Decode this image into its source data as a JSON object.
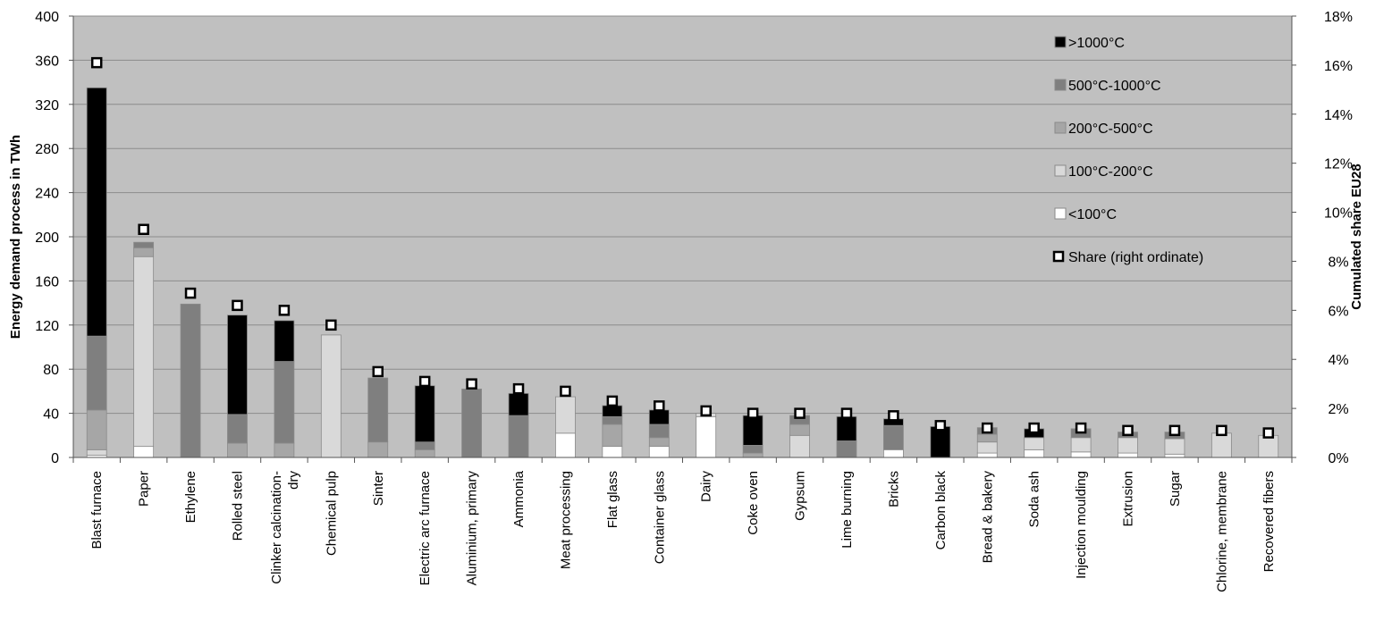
{
  "chart_data": {
    "type": "bar",
    "stacked": true,
    "title": "",
    "ylabel": "Energy demand process in TWh",
    "y2label": "Cumulated share EU28",
    "ylim": [
      0,
      400
    ],
    "yticks": [
      "0",
      "40",
      "80",
      "120",
      "160",
      "200",
      "240",
      "280",
      "320",
      "360",
      "400"
    ],
    "y2lim": [
      0,
      18
    ],
    "y2ticks": [
      "0%",
      "2%",
      "4%",
      "6%",
      "8%",
      "10%",
      "12%",
      "14%",
      "16%",
      "18%"
    ],
    "grid": true,
    "legend_position": "top-right",
    "categories": [
      "Blast furnace",
      "Paper",
      "Ethylene",
      "Rolled steel",
      "Clinker calcination-dry",
      "Chemical pulp",
      "Sinter",
      "Electric arc furnace",
      "Aluminium, primary",
      "Ammonia",
      "Meat processing",
      "Flat glass",
      "Container glass",
      "Dairy",
      "Coke oven",
      "Gypsum",
      "Lime burning",
      "Bricks",
      "Carbon black",
      "Bread & bakery",
      "Soda ash",
      "Injection moulding",
      "Extrusion",
      "Sugar",
      "Chlorine, membrane",
      "Recovered fibers"
    ],
    "series": [
      {
        "name": "<100°C",
        "color": "#ffffff",
        "values": [
          2,
          10,
          0,
          0,
          0,
          0,
          0,
          0,
          0,
          0,
          22,
          10,
          10,
          37,
          0,
          0,
          0,
          7,
          0,
          4,
          7,
          5,
          4,
          3,
          0,
          0
        ]
      },
      {
        "name": "100°C-200°C",
        "color": "#d9d9d9",
        "values": [
          5,
          172,
          0,
          0,
          0,
          111,
          0,
          0,
          0,
          0,
          33,
          0,
          0,
          3,
          0,
          20,
          0,
          0,
          0,
          10,
          11,
          13,
          14,
          14,
          22,
          20
        ]
      },
      {
        "name": "200°C-500°C",
        "color": "#a6a6a6",
        "values": [
          36,
          8,
          0,
          13,
          13,
          0,
          14,
          7,
          0,
          0,
          0,
          20,
          8,
          0,
          4,
          10,
          0,
          0,
          0,
          7,
          0,
          0,
          0,
          0,
          0,
          0
        ]
      },
      {
        "name": "500°C-1000°C",
        "color": "#7f7f7f",
        "values": [
          67,
          5,
          139,
          26,
          74,
          0,
          58,
          7,
          62,
          38,
          0,
          7,
          12,
          0,
          7,
          8,
          15,
          22,
          0,
          6,
          0,
          8,
          5,
          6,
          0,
          0
        ]
      },
      {
        "name": ">1000°C",
        "color": "#000000",
        "values": [
          225,
          0,
          0,
          90,
          37,
          0,
          0,
          51,
          0,
          20,
          0,
          10,
          13,
          0,
          27,
          0,
          22,
          6,
          28,
          0,
          8,
          0,
          0,
          0,
          0,
          0
        ]
      }
    ],
    "share": {
      "name": "Share (right ordinate)",
      "axis": "right",
      "values": [
        16.1,
        9.3,
        6.7,
        6.2,
        6.0,
        5.4,
        3.5,
        3.1,
        3.0,
        2.8,
        2.7,
        2.3,
        2.1,
        1.9,
        1.8,
        1.8,
        1.8,
        1.7,
        1.3,
        1.2,
        1.2,
        1.2,
        1.1,
        1.1,
        1.1,
        1.0
      ]
    },
    "legend": [
      ">1000°C",
      "500°C-1000°C",
      "200°C-500°C",
      "100°C-200°C",
      "<100°C",
      "Share (right ordinate)"
    ],
    "colors": {
      "plot_background": "#c0c0c0",
      "gridline": "#8c8c8c"
    }
  }
}
